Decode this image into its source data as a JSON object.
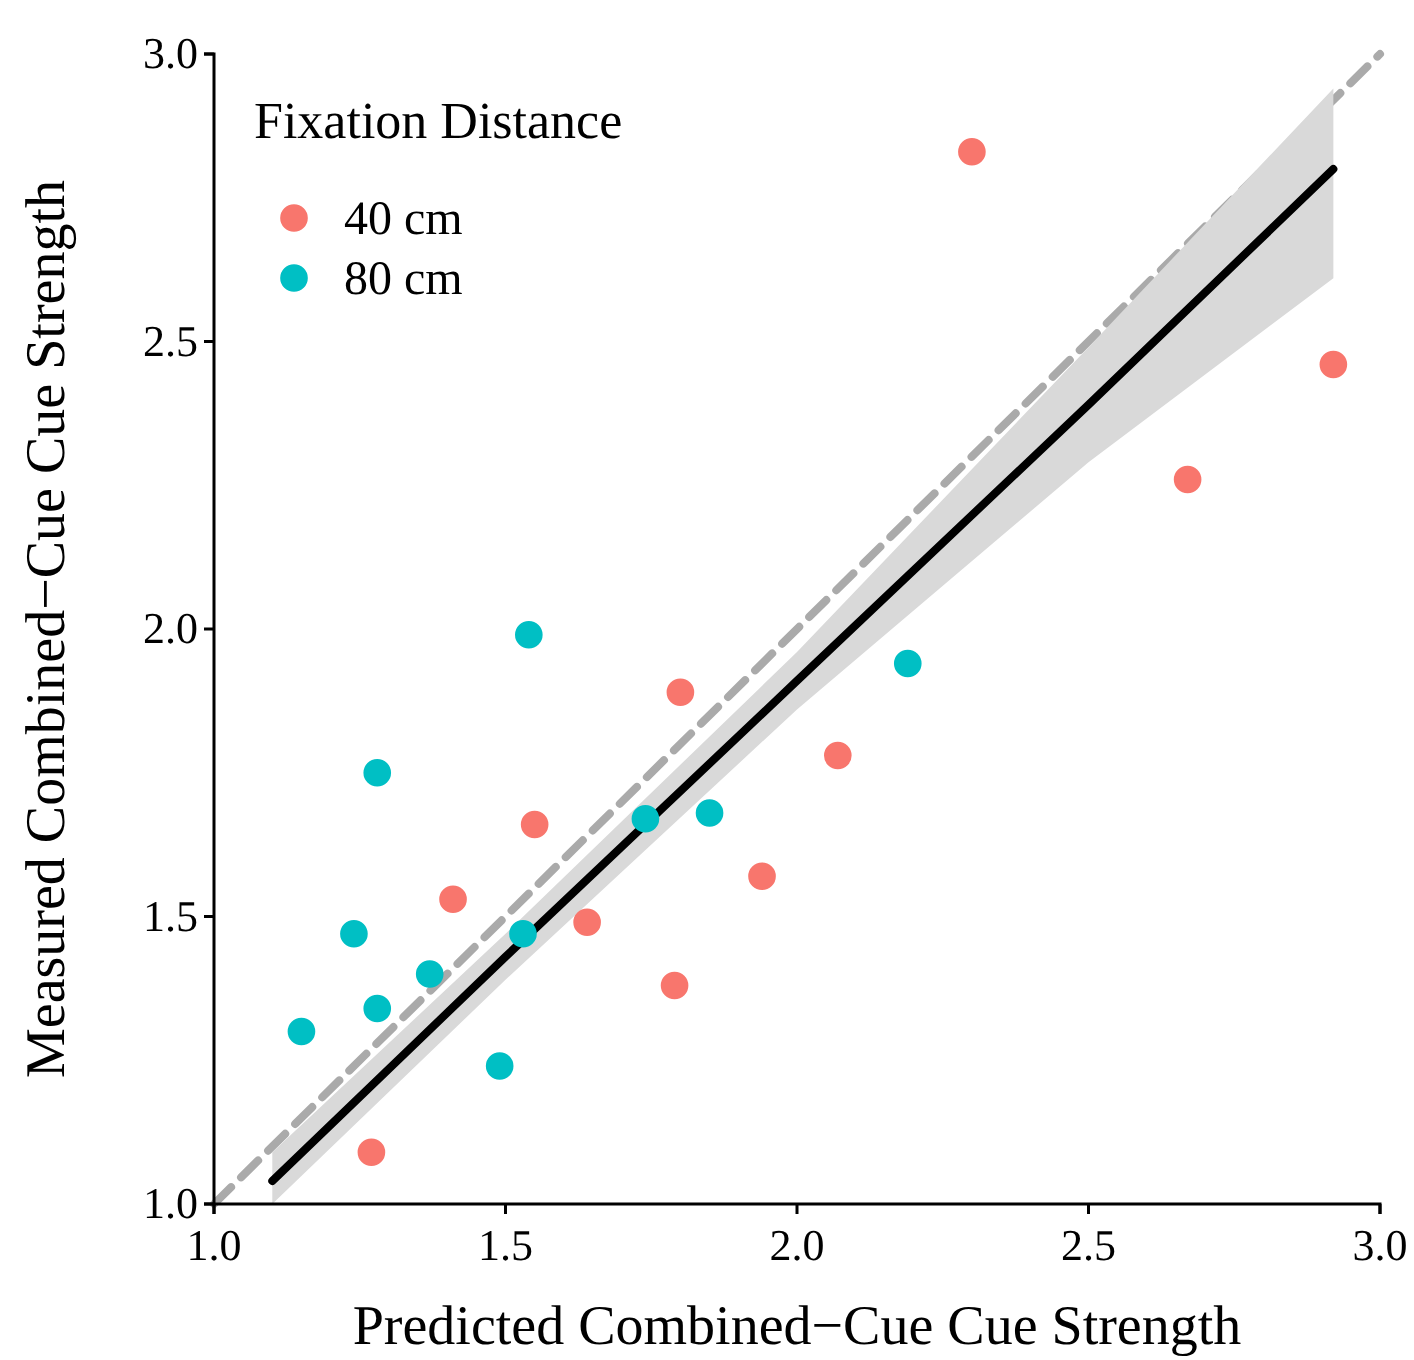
{
  "chart_data": {
    "type": "scatter",
    "xlabel": "Predicted Combined−Cue Cue Strength",
    "ylabel": "Measured Combined−Cue Cue Strength",
    "legend_title": "Fixation Distance",
    "legend": "top left",
    "grid": false,
    "marker": "circle",
    "xlim": [
      1.0,
      3.0
    ],
    "ylim": [
      1.0,
      3.0
    ],
    "xticks": [
      {
        "value": 1.0,
        "label": "1.0"
      },
      {
        "value": 1.5,
        "label": "1.5"
      },
      {
        "value": 2.0,
        "label": "2.0"
      },
      {
        "value": 2.5,
        "label": "2.5"
      },
      {
        "value": 3.0,
        "label": "3.0"
      }
    ],
    "yticks": [
      {
        "value": 1.0,
        "label": "1.0"
      },
      {
        "value": 1.5,
        "label": "1.5"
      },
      {
        "value": 2.0,
        "label": "2.0"
      },
      {
        "value": 2.5,
        "label": "2.5"
      },
      {
        "value": 3.0,
        "label": "3.0"
      }
    ],
    "series": [
      {
        "type": "line",
        "marker": "none",
        "color": "#aaaaaa",
        "line_style": "dashed",
        "x": [
          1.0,
          3.0
        ],
        "values": [
          1.0,
          3.0
        ]
      },
      {
        "type": "line",
        "marker": "none",
        "color": "#000000",
        "line_style": "solid",
        "x": [
          1.1,
          1.5,
          2.0,
          2.5,
          2.92
        ],
        "values": [
          1.04,
          1.43,
          1.91,
          2.39,
          2.8
        ],
        "lower": [
          1.0,
          1.39,
          1.86,
          2.29,
          2.61
        ],
        "upper": [
          1.09,
          1.47,
          1.96,
          2.49,
          2.94
        ]
      },
      {
        "name": "40 cm",
        "color": "#f8766d",
        "x": [
          1.27,
          1.41,
          1.55,
          1.64,
          1.8,
          1.79,
          1.94,
          2.07,
          2.3,
          2.67,
          2.92
        ],
        "values": [
          1.09,
          1.53,
          1.66,
          1.49,
          1.89,
          1.38,
          1.57,
          1.78,
          2.83,
          2.26,
          2.46
        ]
      },
      {
        "name": "80 cm",
        "color": "#00bfc4",
        "x": [
          1.15,
          1.24,
          1.28,
          1.28,
          1.37,
          1.49,
          1.53,
          1.54,
          1.74,
          1.85,
          2.19
        ],
        "values": [
          1.3,
          1.47,
          1.75,
          1.34,
          1.4,
          1.24,
          1.47,
          1.99,
          1.67,
          1.68,
          1.94
        ]
      }
    ]
  }
}
